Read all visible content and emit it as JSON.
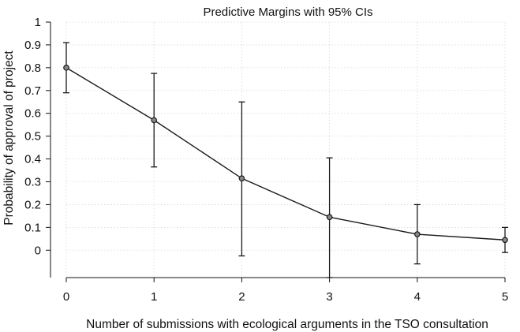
{
  "chart_data": {
    "type": "line",
    "title": "Predictive Margins with 95% CIs",
    "xlabel": "Number of submissions with ecological arguments in the TSO consultation",
    "ylabel": "Probability of approval of project",
    "x": [
      0,
      1,
      2,
      3,
      4,
      5
    ],
    "x_ticks": [
      "0",
      "1",
      "2",
      "3",
      "4",
      "5"
    ],
    "y_ticks": [
      "0",
      "0.1",
      "0.2",
      "0.3",
      "0.4",
      "0.5",
      "0.6",
      "0.7",
      "0.8",
      "0.9",
      "1"
    ],
    "xlim": [
      0,
      5
    ],
    "ylim": [
      -0.12,
      1
    ],
    "grid": true,
    "series": [
      {
        "values": [
          0.8,
          0.57,
          0.315,
          0.145,
          0.07,
          0.045
        ],
        "ci_lower": [
          0.69,
          0.365,
          -0.025,
          -0.12,
          -0.06,
          -0.01
        ],
        "ci_upper": [
          0.91,
          0.775,
          0.65,
          0.405,
          0.2,
          0.1
        ],
        "color": "#1a1a1a"
      }
    ]
  }
}
